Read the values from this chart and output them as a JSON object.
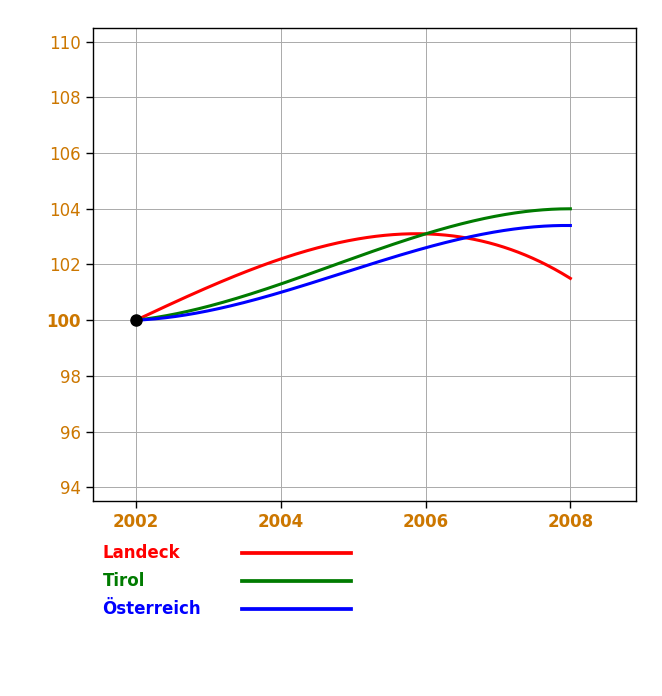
{
  "years": [
    2002,
    2004,
    2006,
    2008
  ],
  "landeck": [
    100.0,
    102.2,
    103.1,
    101.5
  ],
  "tirol": [
    100.0,
    101.3,
    103.1,
    104.0
  ],
  "oesterreich": [
    100.0,
    101.0,
    102.6,
    103.4
  ],
  "landeck_color": "#ff0000",
  "tirol_color": "#007b00",
  "oesterreich_color": "#0000ff",
  "dot_color": "#000000",
  "ylim": [
    93.5,
    110.5
  ],
  "yticks": [
    94,
    96,
    98,
    100,
    102,
    104,
    106,
    108,
    110
  ],
  "xticks": [
    2002,
    2004,
    2006,
    2008
  ],
  "legend_labels": [
    "Landeck",
    "Tirol",
    "Österreich"
  ],
  "line_width": 2.2,
  "grid_color": "#aaaaaa",
  "bg_color": "#ffffff",
  "tick_label_color": "#cc7700",
  "tick_label_fontsize": 12,
  "legend_fontsize": 12,
  "bold_100": true
}
